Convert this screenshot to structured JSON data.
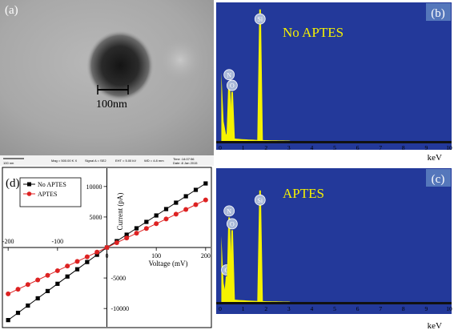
{
  "panel_a": {
    "label": "(a)",
    "scale_bar_text": "100nm",
    "footer": {
      "scale": "100 nm",
      "mag": "Mag = 500.00 K X",
      "signal": "Signal A = SE2",
      "eht": "EHT = 5.00 kV",
      "wd": "WD = 4.8 mm",
      "time": "Time :14:07:56",
      "date": "Date :8 Jan 2015"
    }
  },
  "panel_b": {
    "label": "(b)",
    "annotation": "No APTES"
  },
  "panel_c": {
    "label": "(c)",
    "annotation": "APTES"
  },
  "panel_d": {
    "label": "(d)"
  },
  "colors": {
    "spectrum_bg": "#23399a",
    "spectrum_fill": "#f5f200",
    "peak_marker": "#a8b8d8",
    "label_box": "#5577bb",
    "series_no_aptes": "#000000",
    "series_aptes": "#dd2222"
  },
  "chart_data": [
    {
      "type": "area",
      "panel": "b",
      "xlabel": "keV",
      "xlim": [
        0,
        10
      ],
      "x_ticks": [
        "0",
        "1",
        "2",
        "3",
        "4",
        "5",
        "6",
        "7",
        "8",
        "9",
        "10"
      ],
      "peaks": [
        {
          "label": "N",
          "kev": 0.39,
          "height": 0.45
        },
        {
          "label": "O",
          "kev": 0.52,
          "height": 0.37
        },
        {
          "label": "Si",
          "kev": 1.74,
          "height": 0.99
        }
      ]
    },
    {
      "type": "area",
      "panel": "c",
      "xlabel": "keV",
      "xlim": [
        0,
        10
      ],
      "x_ticks": [
        "0",
        "1",
        "2",
        "3",
        "4",
        "5",
        "6",
        "7",
        "8",
        "9",
        "10"
      ],
      "peaks": [
        {
          "label": "C",
          "kev": 0.28,
          "height": 0.2
        },
        {
          "label": "N",
          "kev": 0.39,
          "height": 0.66
        },
        {
          "label": "O",
          "kev": 0.52,
          "height": 0.56
        },
        {
          "label": "Si",
          "kev": 1.74,
          "height": 0.87
        }
      ]
    },
    {
      "type": "line",
      "panel": "d",
      "xlabel": "Voltage (mV)",
      "ylabel": "Current (pA)",
      "xlim": [
        -210,
        210
      ],
      "ylim": [
        -13000,
        13000
      ],
      "x_ticks": [
        -200,
        -100,
        0,
        100,
        200
      ],
      "x_tick_labels": [
        "-200",
        "-100",
        "0",
        "100",
        "200"
      ],
      "y_ticks": [
        -10000,
        -5000,
        5000,
        10000
      ],
      "y_tick_labels": [
        "-10000",
        "-5000",
        "5000",
        "10000"
      ],
      "legend": "top-left",
      "series": [
        {
          "name": "No APTES",
          "marker": "square",
          "x": [
            -200,
            -180,
            -160,
            -140,
            -120,
            -100,
            -80,
            -60,
            -40,
            -20,
            0,
            20,
            40,
            60,
            80,
            100,
            120,
            140,
            160,
            180,
            200
          ],
          "y": [
            -11900,
            -10710,
            -9520,
            -8330,
            -7140,
            -5950,
            -4760,
            -3570,
            -2380,
            -1190,
            0,
            1050,
            2100,
            3150,
            4200,
            5250,
            6300,
            7350,
            8400,
            9450,
            10500
          ]
        },
        {
          "name": "APTES",
          "marker": "circle",
          "x": [
            -200,
            -180,
            -160,
            -140,
            -120,
            -100,
            -80,
            -60,
            -40,
            -20,
            0,
            20,
            40,
            60,
            80,
            100,
            120,
            140,
            160,
            180,
            200
          ],
          "y": [
            -7600,
            -6840,
            -6080,
            -5320,
            -4560,
            -3800,
            -3040,
            -2280,
            -1520,
            -760,
            0,
            780,
            1560,
            2340,
            3120,
            3900,
            4680,
            5460,
            6240,
            7020,
            7800
          ]
        }
      ]
    }
  ]
}
